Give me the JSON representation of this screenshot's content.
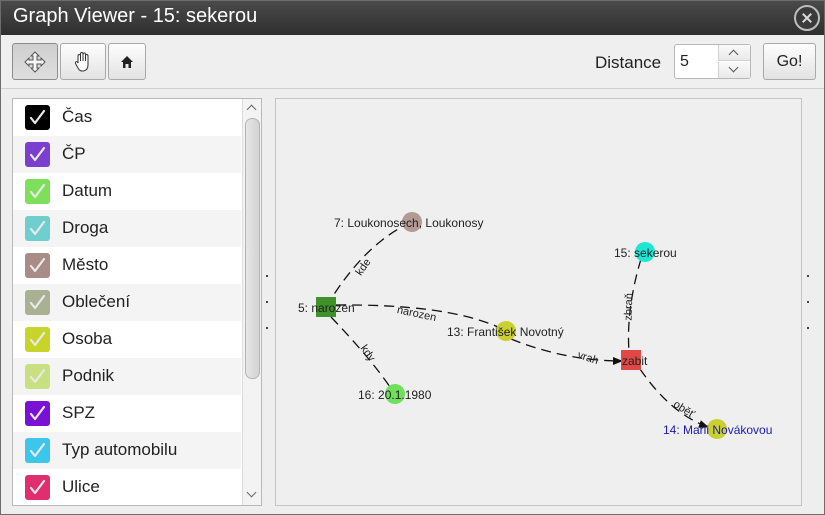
{
  "window": {
    "title": "Graph Viewer - 15: sekerou"
  },
  "toolbar": {
    "distance_label": "Distance",
    "distance_value": "5",
    "go_label": "Go!"
  },
  "legend": [
    {
      "label": "Čas",
      "color": "#000000"
    },
    {
      "label": "ČP",
      "color": "#7a3fcf"
    },
    {
      "label": "Datum",
      "color": "#7ee05a"
    },
    {
      "label": "Droga",
      "color": "#6fcfcf"
    },
    {
      "label": "Město",
      "color": "#a78d86"
    },
    {
      "label": "Oblečení",
      "color": "#a9b193"
    },
    {
      "label": "Osoba",
      "color": "#c7d52a"
    },
    {
      "label": "Podnik",
      "color": "#c8e07f"
    },
    {
      "label": "SPZ",
      "color": "#7a12d6"
    },
    {
      "label": "Typ automobilu",
      "color": "#3cc6ea"
    },
    {
      "label": "Ulice",
      "color": "#df2f6e"
    }
  ],
  "graph": {
    "nodes": [
      {
        "id": "n7",
        "label": "7: Loukonosech, Loukonosy",
        "color": "#b39a93",
        "shape": "circle",
        "label_color": "#222222"
      },
      {
        "id": "n5",
        "label": "5: narozen",
        "color": "#3f9129",
        "shape": "square",
        "label_color": "#222222"
      },
      {
        "id": "n13",
        "label": "13: František Novotný",
        "color": "#c9d030",
        "shape": "circle",
        "label_color": "#222222"
      },
      {
        "id": "n16",
        "label": "16: 20.1.1980",
        "color": "#6fe05a",
        "shape": "circle",
        "label_color": "#222222"
      },
      {
        "id": "n15",
        "label": "15: sekerou",
        "color": "#1ee6d6",
        "shape": "circle",
        "label_color": "#222222"
      },
      {
        "id": "n_zabit",
        "label": "zabit",
        "color": "#e04848",
        "shape": "square",
        "label_color": "#222222"
      },
      {
        "id": "n14",
        "label": "14: Marii Novákovou",
        "color": "#c9d030",
        "shape": "circle",
        "label_color": "#1a1ab4"
      }
    ],
    "edges": [
      {
        "from": "n5",
        "to": "n7",
        "label": "kde"
      },
      {
        "from": "n5",
        "to": "n13",
        "label": "narozen"
      },
      {
        "from": "n5",
        "to": "n16",
        "label": "kdy"
      },
      {
        "from": "n13",
        "to": "n_zabit",
        "label": "vrah"
      },
      {
        "from": "n15",
        "to": "n_zabit",
        "label": "zbraň"
      },
      {
        "from": "n_zabit",
        "to": "n14",
        "label": "oběť"
      }
    ]
  }
}
